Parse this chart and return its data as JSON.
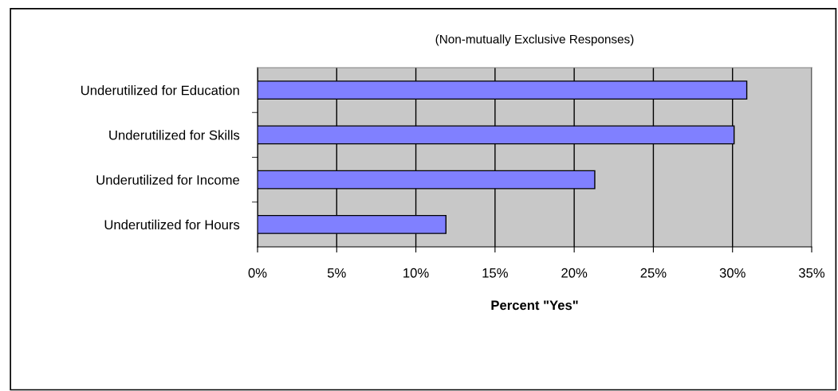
{
  "chart_data": {
    "type": "bar",
    "orientation": "horizontal",
    "subtitle": "(Non-mutually Exclusive Responses)",
    "xlabel": "Percent \"Yes\"",
    "categories": [
      "Underutilized for Education",
      "Underutilized for Skills",
      "Underutilized for Income",
      "Underutilized for Hours"
    ],
    "values": [
      30.9,
      30.1,
      21.3,
      11.9
    ],
    "color": "#8080ff",
    "xlim": [
      0,
      35
    ],
    "xticks": [
      {
        "value": 0,
        "label": "0%"
      },
      {
        "value": 5,
        "label": "5%"
      },
      {
        "value": 10,
        "label": "10%"
      },
      {
        "value": 15,
        "label": "15%"
      },
      {
        "value": 20,
        "label": "20%"
      },
      {
        "value": 25,
        "label": "25%"
      },
      {
        "value": 30,
        "label": "30%"
      },
      {
        "value": 35,
        "label": "35%"
      }
    ],
    "grid": "x",
    "legend": false
  }
}
